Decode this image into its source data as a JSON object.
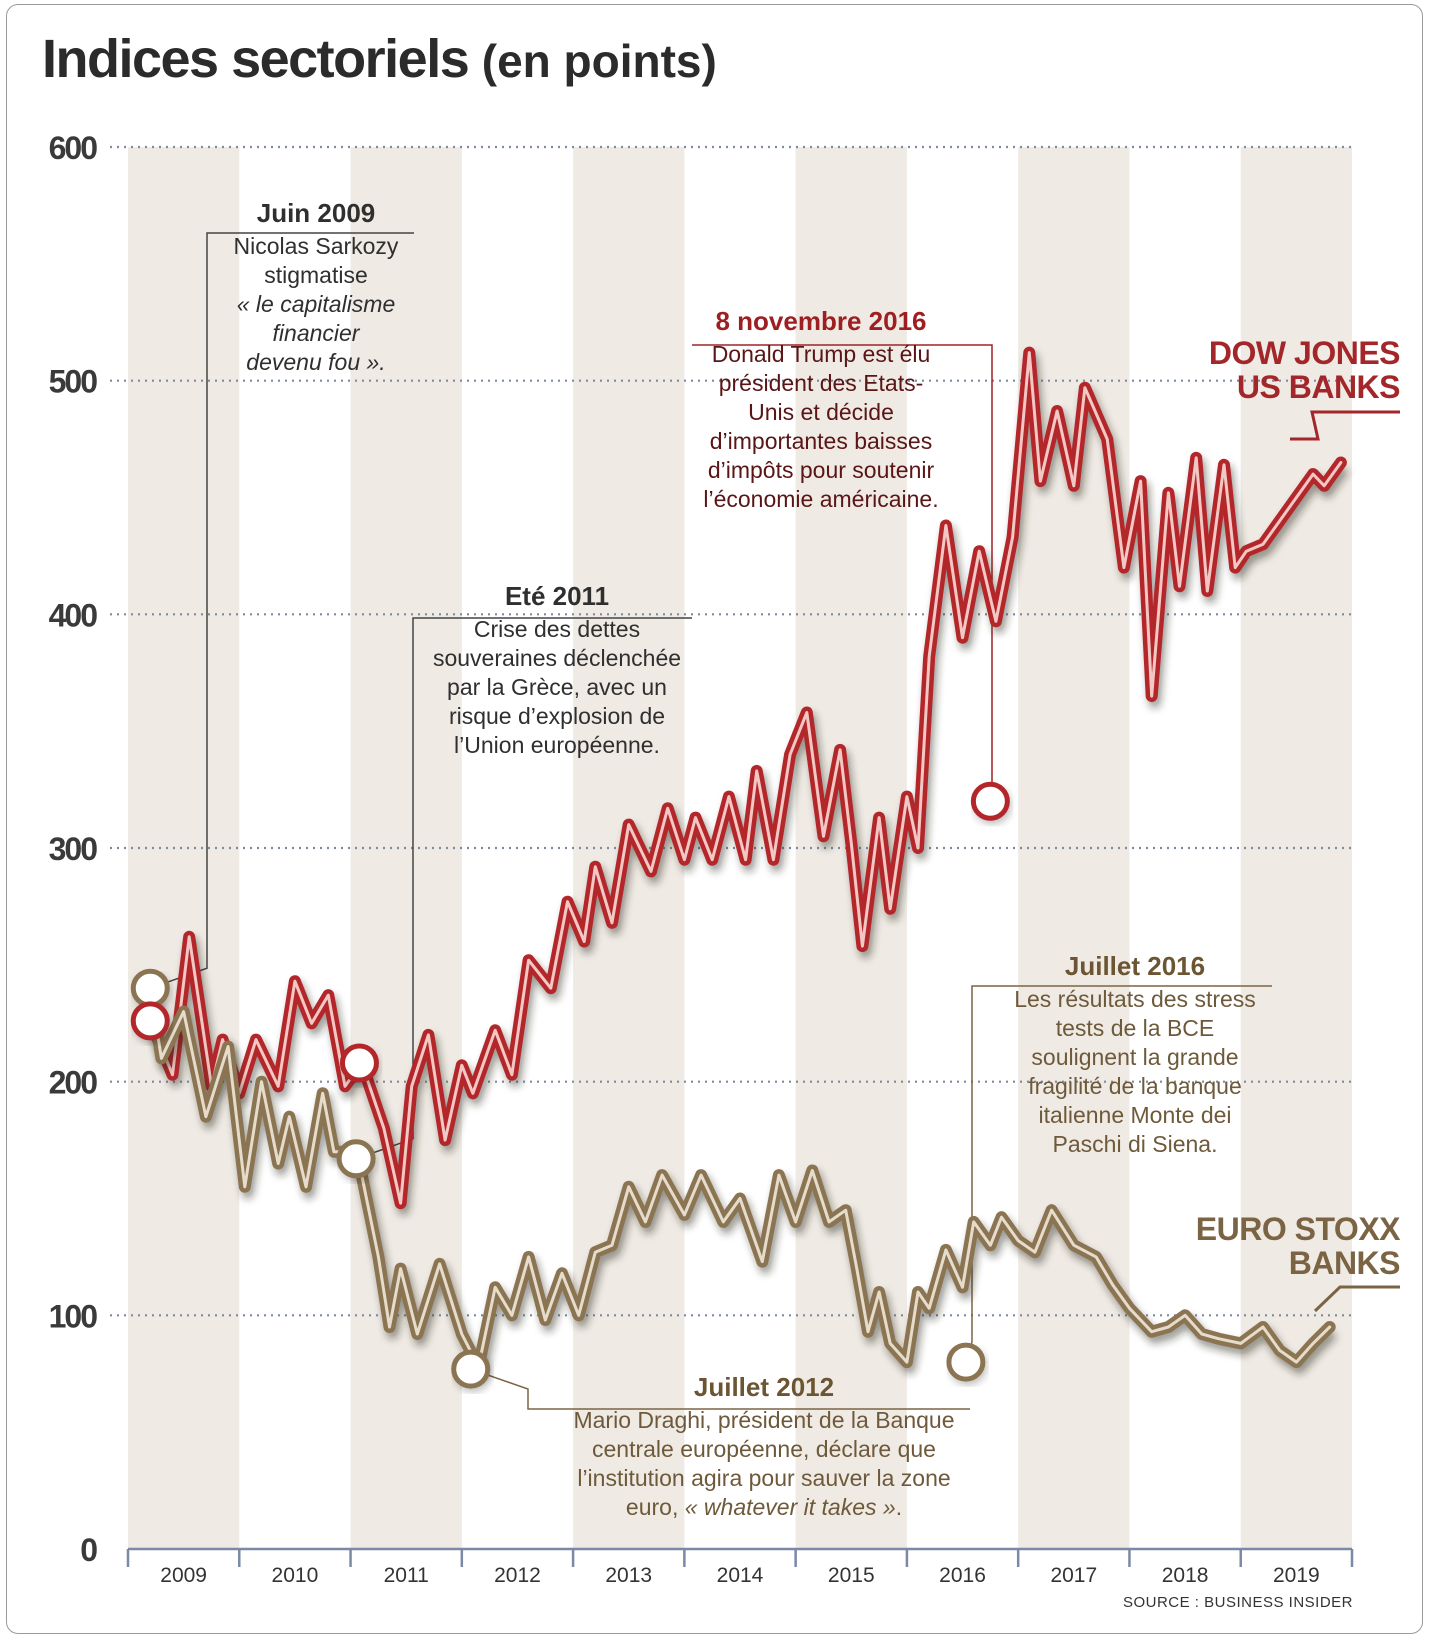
{
  "title": "Indices sectoriels",
  "title_unit": "(en points)",
  "source": "SOURCE : BUSINESS INSIDER",
  "colors": {
    "dow": "#b3272b",
    "euro": "#8b7451",
    "band": "#efeae4",
    "grid": "#7d8aa0"
  },
  "chart_data": {
    "type": "line",
    "title": "Indices sectoriels (en points)",
    "xlabel": "",
    "ylabel": "",
    "ylim": [
      0,
      600
    ],
    "yticks": [
      0,
      100,
      200,
      300,
      400,
      500,
      600
    ],
    "xlim": [
      2009.0,
      2020.0
    ],
    "categories": [
      "2009",
      "2010",
      "2011",
      "2012",
      "2013",
      "2014",
      "2015",
      "2016",
      "2017",
      "2018",
      "2019"
    ],
    "grid": "horizontal dotted",
    "series": [
      {
        "name": "DOW JONES\nUS BANKS",
        "x": [
          2009.2,
          2009.4,
          2009.55,
          2009.75,
          2009.85,
          2010.0,
          2010.15,
          2010.35,
          2010.5,
          2010.65,
          2010.8,
          2010.95,
          2011.1,
          2011.3,
          2011.45,
          2011.55,
          2011.7,
          2011.85,
          2012.0,
          2012.1,
          2012.3,
          2012.45,
          2012.6,
          2012.8,
          2012.95,
          2013.1,
          2013.2,
          2013.35,
          2013.5,
          2013.7,
          2013.85,
          2014.0,
          2014.1,
          2014.25,
          2014.4,
          2014.55,
          2014.65,
          2014.8,
          2014.95,
          2015.1,
          2015.25,
          2015.4,
          2015.5,
          2015.6,
          2015.75,
          2015.85,
          2016.0,
          2016.1,
          2016.2,
          2016.35,
          2016.5,
          2016.65,
          2016.8,
          2016.95,
          2017.1,
          2017.2,
          2017.35,
          2017.5,
          2017.6,
          2017.8,
          2017.95,
          2018.1,
          2018.2,
          2018.35,
          2018.45,
          2018.6,
          2018.7,
          2018.85,
          2018.95,
          2019.05,
          2019.2,
          2019.35,
          2019.5,
          2019.65,
          2019.75,
          2019.9
        ],
        "values": [
          226,
          203,
          262,
          198,
          218,
          195,
          218,
          198,
          243,
          225,
          237,
          198,
          208,
          180,
          148,
          198,
          220,
          175,
          207,
          195,
          222,
          203,
          252,
          240,
          277,
          260,
          292,
          268,
          310,
          290,
          317,
          295,
          313,
          295,
          322,
          295,
          333,
          295,
          340,
          358,
          305,
          342,
          302,
          258,
          313,
          274,
          322,
          300,
          382,
          438,
          390,
          427,
          397,
          433,
          512,
          457,
          487,
          455,
          497,
          475,
          420,
          457,
          365,
          452,
          412,
          467,
          410,
          464,
          420,
          427,
          430,
          440,
          450,
          460,
          455,
          465
        ]
      },
      {
        "name": "EURO STOXX\nBANKS",
        "x": [
          2009.2,
          2009.3,
          2009.5,
          2009.7,
          2009.9,
          2010.05,
          2010.2,
          2010.35,
          2010.45,
          2010.6,
          2010.75,
          2010.85,
          2011.0,
          2011.1,
          2011.25,
          2011.35,
          2011.45,
          2011.6,
          2011.8,
          2012.0,
          2012.15,
          2012.3,
          2012.45,
          2012.6,
          2012.75,
          2012.9,
          2013.05,
          2013.2,
          2013.35,
          2013.5,
          2013.65,
          2013.8,
          2014.0,
          2014.15,
          2014.35,
          2014.5,
          2014.7,
          2014.85,
          2015.0,
          2015.15,
          2015.3,
          2015.45,
          2015.55,
          2015.65,
          2015.75,
          2015.85,
          2016.0,
          2016.1,
          2016.2,
          2016.35,
          2016.5,
          2016.6,
          2016.75,
          2016.85,
          2017.0,
          2017.15,
          2017.3,
          2017.5,
          2017.7,
          2017.85,
          2018.0,
          2018.2,
          2018.35,
          2018.5,
          2018.65,
          2018.8,
          2019.0,
          2019.2,
          2019.35,
          2019.5,
          2019.65,
          2019.8
        ],
        "values": [
          240,
          210,
          230,
          185,
          215,
          155,
          200,
          165,
          185,
          155,
          195,
          170,
          170,
          160,
          125,
          95,
          120,
          92,
          122,
          92,
          78,
          112,
          100,
          125,
          98,
          118,
          100,
          127,
          130,
          155,
          140,
          160,
          143,
          160,
          140,
          150,
          123,
          160,
          140,
          162,
          140,
          145,
          120,
          93,
          110,
          88,
          80,
          110,
          103,
          128,
          112,
          140,
          130,
          142,
          132,
          127,
          145,
          130,
          125,
          113,
          103,
          93,
          95,
          100,
          92,
          90,
          88,
          95,
          85,
          80,
          88,
          95
        ]
      }
    ]
  },
  "annotations": {
    "juin2009": {
      "heading": "Juin 2009",
      "text": "Nicolas Sarkozy\nstigmatise",
      "quote": "« le capitalisme\nfinancier\ndevenu fou »."
    },
    "ete2011": {
      "heading": "Eté 2011",
      "text": "Crise des dettes\nsouveraines déclenchée\npar la Grèce, avec un\nrisque d’explosion de\nl’Union européenne."
    },
    "nov2016": {
      "heading": "8 novembre 2016",
      "text": "Donald Trump est élu\nprésident des Etats-\nUnis et décide\nd’importantes baisses\nd’impôts pour soutenir\nl’économie américaine."
    },
    "juil2016": {
      "heading": "Juillet 2016",
      "text": "Les résultats des stress\ntests de la BCE\nsoulignent la grande\nfragilité de la banque\nitalienne Monte dei\nPaschi di Siena."
    },
    "juil2012": {
      "heading": "Juillet 2012",
      "text": "Mario Draghi, président de la Banque\ncentrale européenne, déclare que\nl’institution agira pour sauver la zone",
      "text_end": "euro, ",
      "quote": "« whatever it takes »",
      "end": "."
    }
  },
  "markers": [
    {
      "series": "euro",
      "x": 2009.2,
      "y": 240
    },
    {
      "series": "dow",
      "x": 2009.2,
      "y": 226
    },
    {
      "series": "dow",
      "x": 2011.08,
      "y": 208
    },
    {
      "series": "euro",
      "x": 2011.05,
      "y": 167
    },
    {
      "series": "euro",
      "x": 2012.08,
      "y": 77
    },
    {
      "series": "dow",
      "x": 2016.75,
      "y": 320
    },
    {
      "series": "euro",
      "x": 2016.53,
      "y": 80
    }
  ]
}
